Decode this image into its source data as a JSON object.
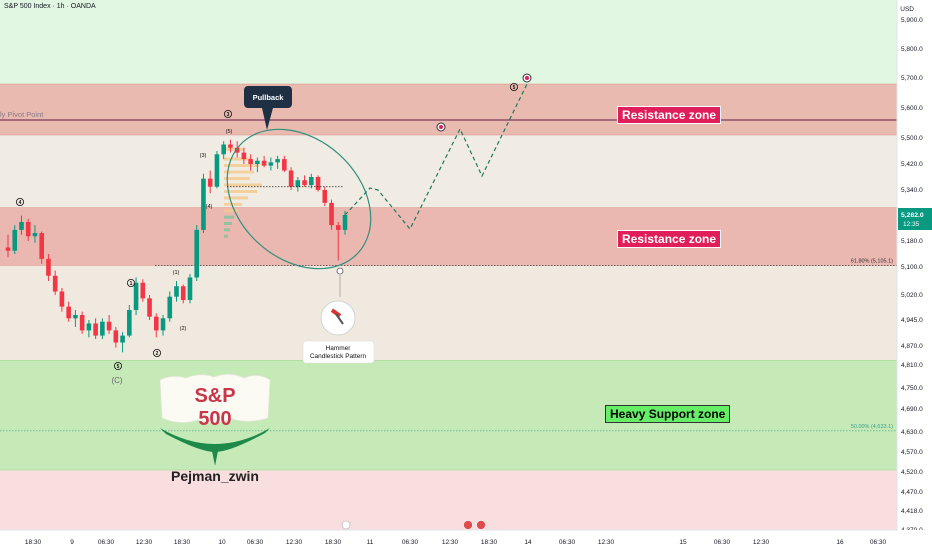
{
  "header": {
    "title": "S&P 500 Index · 1h · OANDA",
    "currency": "USD"
  },
  "colors": {
    "up": "#089981",
    "down": "#f23645",
    "resistance": "#e8a9a5",
    "support": "#c6eab9",
    "pivot": "#7b3f5a",
    "label_red": "#e01e5a",
    "label_green": "#66ee66"
  },
  "zones": [
    {
      "name": "Resistance zone",
      "type": "resistance",
      "from": 5510,
      "to": 5680
    },
    {
      "name": "Resistance zone",
      "type": "resistance",
      "from": 5105,
      "to": 5285
    },
    {
      "name": "Heavy Support zone",
      "type": "support",
      "from": 4525,
      "to": 4825
    }
  ],
  "pivot": {
    "label": "ly Pivot Point",
    "value": 5560
  },
  "fib_levels": [
    {
      "label": "61.80% (5,105.1)",
      "value": 5105.1
    },
    {
      "label": "50.00% (4,633.1)",
      "value": 4633.1
    }
  ],
  "last_price": {
    "value": "5,262.0",
    "time": "12:35"
  },
  "annotations": {
    "pullback": "Pullback",
    "hammer_title": "Hammer",
    "hammer_subtitle": "Candlestick Pattern",
    "logo_line1": "S&P",
    "logo_line2": "500",
    "author": "Pejman_zwin",
    "wave_c": "(C)"
  },
  "waves": [
    {
      "label": "4",
      "kind": "circled"
    },
    {
      "label": "5",
      "kind": "circled"
    },
    {
      "label": "1",
      "kind": "circled"
    },
    {
      "label": "2",
      "kind": "circled"
    },
    {
      "label": "(1)",
      "kind": "plain"
    },
    {
      "label": "(2)",
      "kind": "plain"
    },
    {
      "label": "(3)",
      "kind": "plain"
    },
    {
      "label": "(4)",
      "kind": "plain"
    },
    {
      "label": "(5)",
      "kind": "plain"
    },
    {
      "label": "3",
      "kind": "circled"
    },
    {
      "label": "5",
      "kind": "circled"
    }
  ],
  "chart_data": {
    "type": "candlestick",
    "title": "S&P 500 Index · 1h · OANDA",
    "ylim": [
      4340,
      5980
    ],
    "y_ticks": [
      "5,900.0",
      "5,800.0",
      "5,700.0",
      "5,600.0",
      "5,500.0",
      "5,420.0",
      "5,340.0",
      "5,180.0",
      "5,100.0",
      "5,020.0",
      "4,945.0",
      "4,870.0",
      "4,810.0",
      "4,750.0",
      "4,690.0",
      "4,630.0",
      "4,570.0",
      "4,520.0",
      "4,470.0",
      "4,418.0",
      "4,370.0"
    ],
    "x_ticks": [
      "18:30",
      "9",
      "06:30",
      "12:30",
      "18:30",
      "10",
      "06:30",
      "12:30",
      "18:30",
      "11",
      "06:30",
      "12:30",
      "18:30",
      "14",
      "06:30",
      "12:30",
      "15",
      "06:30",
      "12:30",
      "16",
      "06:30"
    ],
    "candles": [
      [
        5160,
        5200,
        5130,
        5150
      ],
      [
        5150,
        5230,
        5140,
        5215
      ],
      [
        5215,
        5260,
        5200,
        5240
      ],
      [
        5240,
        5250,
        5180,
        5195
      ],
      [
        5195,
        5230,
        5175,
        5205
      ],
      [
        5205,
        5210,
        5110,
        5125
      ],
      [
        5125,
        5140,
        5060,
        5075
      ],
      [
        5075,
        5090,
        5020,
        5030
      ],
      [
        5030,
        5040,
        4970,
        4985
      ],
      [
        4985,
        5000,
        4940,
        4950
      ],
      [
        4950,
        4975,
        4925,
        4960
      ],
      [
        4960,
        4970,
        4905,
        4915
      ],
      [
        4915,
        4945,
        4895,
        4935
      ],
      [
        4935,
        4950,
        4890,
        4900
      ],
      [
        4900,
        4950,
        4890,
        4940
      ],
      [
        4940,
        4960,
        4905,
        4915
      ],
      [
        4915,
        4925,
        4865,
        4880
      ],
      [
        4880,
        4910,
        4850,
        4900
      ],
      [
        4900,
        4990,
        4895,
        4975
      ],
      [
        4975,
        5070,
        4960,
        5055
      ],
      [
        5055,
        5065,
        5000,
        5010
      ],
      [
        5010,
        5020,
        4945,
        4955
      ],
      [
        4955,
        4965,
        4895,
        4915
      ],
      [
        4915,
        4960,
        4900,
        4950
      ],
      [
        4950,
        5030,
        4940,
        5015
      ],
      [
        5015,
        5060,
        5000,
        5045
      ],
      [
        5045,
        5050,
        4995,
        5005
      ],
      [
        5005,
        5080,
        4995,
        5070
      ],
      [
        5070,
        5230,
        5060,
        5215
      ],
      [
        5215,
        5390,
        5205,
        5375
      ],
      [
        5375,
        5400,
        5330,
        5350
      ],
      [
        5350,
        5460,
        5345,
        5450
      ],
      [
        5450,
        5490,
        5435,
        5480
      ],
      [
        5480,
        5495,
        5455,
        5470
      ],
      [
        5470,
        5490,
        5440,
        5455
      ],
      [
        5455,
        5470,
        5420,
        5435
      ],
      [
        5435,
        5450,
        5400,
        5420
      ],
      [
        5420,
        5440,
        5395,
        5430
      ],
      [
        5430,
        5445,
        5410,
        5415
      ],
      [
        5415,
        5440,
        5400,
        5425
      ],
      [
        5425,
        5445,
        5405,
        5435
      ],
      [
        5435,
        5445,
        5395,
        5400
      ],
      [
        5400,
        5410,
        5340,
        5350
      ],
      [
        5350,
        5380,
        5335,
        5370
      ],
      [
        5370,
        5385,
        5350,
        5355
      ],
      [
        5355,
        5390,
        5345,
        5380
      ],
      [
        5380,
        5385,
        5335,
        5340
      ],
      [
        5340,
        5350,
        5290,
        5300
      ],
      [
        5300,
        5310,
        5215,
        5230
      ],
      [
        5230,
        5240,
        5120,
        5215
      ],
      [
        5215,
        5275,
        5200,
        5262
      ]
    ],
    "projection": [
      [
        5262,
        5320
      ],
      [
        5330,
        5360
      ],
      [
        5355,
        5220
      ],
      [
        5225,
        5530
      ],
      [
        5540,
        5380
      ],
      [
        5385,
        5680
      ]
    ]
  }
}
